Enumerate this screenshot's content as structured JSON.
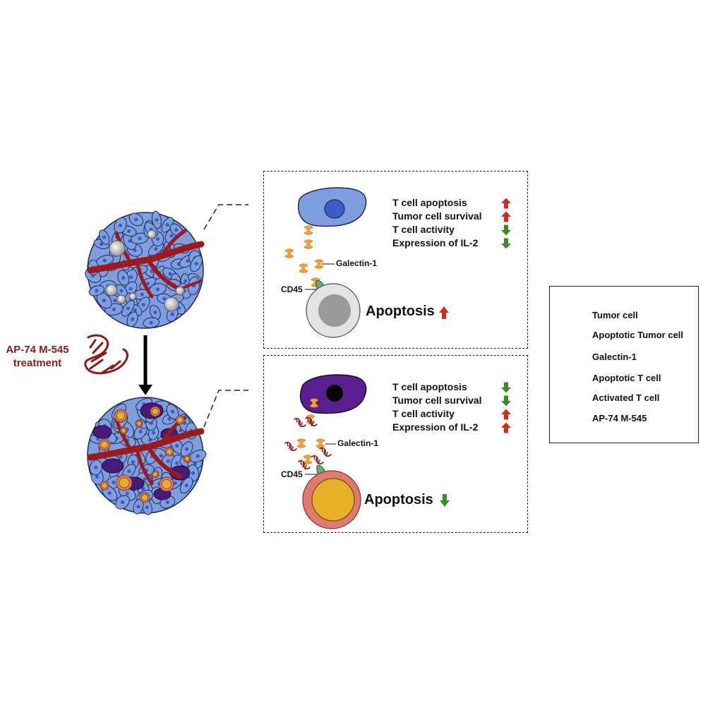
{
  "treatment": {
    "line1": "AP-74 M-545",
    "line2": "treatment"
  },
  "panel_top": {
    "effects": [
      {
        "label": "T cell apoptosis",
        "direction": "up"
      },
      {
        "label": "Tumor cell survival",
        "direction": "up"
      },
      {
        "label": "T cell activity",
        "direction": "down"
      },
      {
        "label": "Expression of IL-2",
        "direction": "down"
      }
    ],
    "galectin_label": "Galectin-1",
    "cd45_label": "CD45",
    "apoptosis_label": "Apoptosis",
    "apoptosis_direction": "up"
  },
  "panel_bottom": {
    "effects": [
      {
        "label": "T cell apoptosis",
        "direction": "down"
      },
      {
        "label": "Tumor cell survival",
        "direction": "down"
      },
      {
        "label": "T cell activity",
        "direction": "up"
      },
      {
        "label": "Expression of IL-2",
        "direction": "up"
      }
    ],
    "galectin_label": "Galectin-1",
    "cd45_label": "CD45",
    "apoptosis_label": "Apoptosis",
    "apoptosis_direction": "down"
  },
  "legend": {
    "items": [
      {
        "label": "Tumor cell",
        "icon": "tumor-cell-icon"
      },
      {
        "label": "Apoptotic Tumor cell",
        "icon": "apoptotic-tumor-cell-icon"
      },
      {
        "label": "Galectin-1",
        "icon": "galectin-1-icon"
      },
      {
        "label": "Apoptotic T cell",
        "icon": "apoptotic-t-cell-icon"
      },
      {
        "label": "Activated T cell",
        "icon": "activated-t-cell-icon"
      },
      {
        "label": "AP-74 M-545",
        "icon": "aptamer-icon"
      }
    ]
  },
  "colors": {
    "up_arrow": "#d42a1f",
    "down_arrow": "#3d8a2a",
    "tumor_cell": "#7e9ee0",
    "apoptotic_tumor_cell": "#5a1f8e",
    "galectin": "#f0a030",
    "activated_t_cell_outer": "#e07a70",
    "activated_t_cell_inner": "#e8b028",
    "apoptotic_t_cell": "#d8d8d8",
    "blood_vessel": "#a01818",
    "treatment_text": "#8b1a1a"
  }
}
